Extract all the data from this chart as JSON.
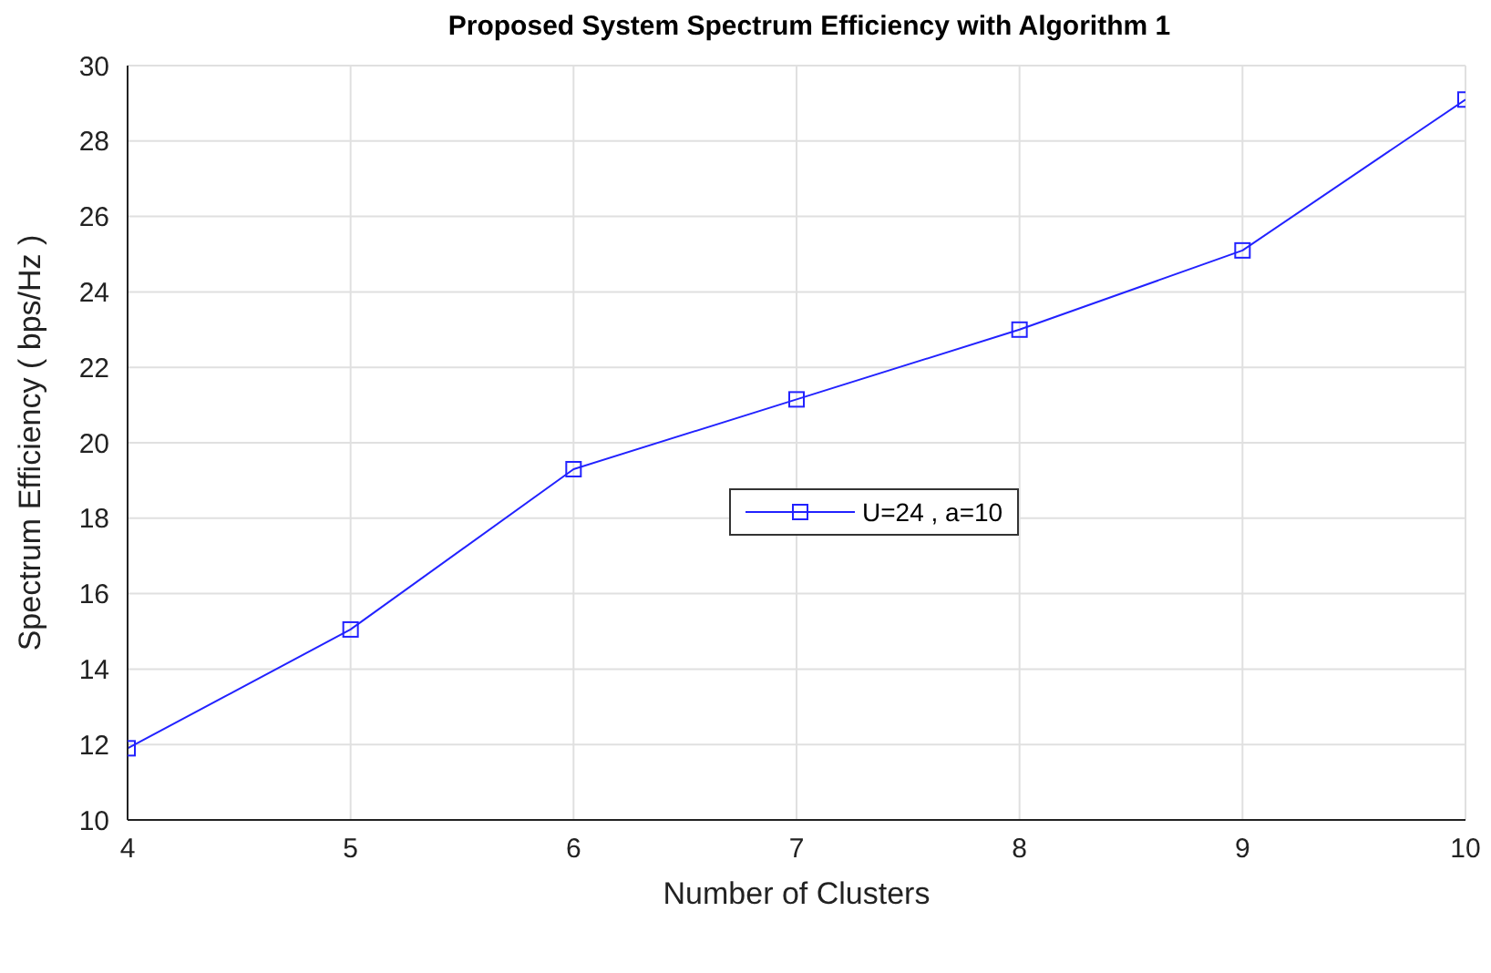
{
  "chart_data": {
    "type": "line",
    "title": "Proposed System Spectrum Efficiency with Algorithm 1",
    "xlabel": "Number of Clusters",
    "ylabel": "Spectrum Efficiency ( bps/Hz )",
    "x": [
      4,
      5,
      6,
      7,
      8,
      9,
      10
    ],
    "series": [
      {
        "name": "U=24 , a=10",
        "color": "#2222ff",
        "values": [
          11.9,
          15.05,
          19.3,
          21.15,
          23.0,
          25.1,
          29.1
        ]
      }
    ],
    "xlim": [
      4,
      10
    ],
    "xticks": [
      4,
      5,
      6,
      7,
      8,
      9,
      10
    ],
    "ylim": [
      10,
      30
    ],
    "yticks": [
      10,
      12,
      14,
      16,
      18,
      20,
      22,
      24,
      26,
      28,
      30
    ],
    "grid": true,
    "legend": "center",
    "marker": "square",
    "line_style": "solid"
  }
}
